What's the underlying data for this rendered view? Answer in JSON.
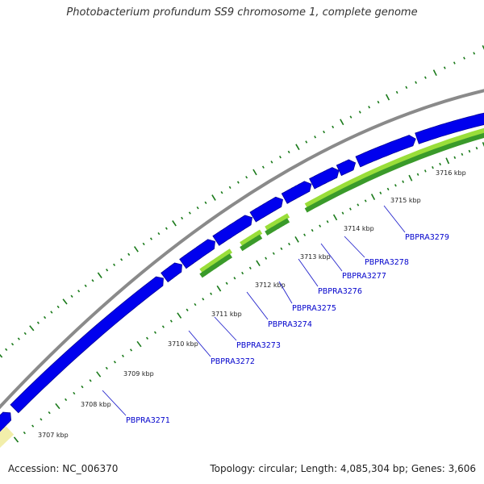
{
  "title": "Photobacterium profundum SS9 chromosome 1, complete genome",
  "footer": {
    "accession": "Accession: NC_006370",
    "summary": "Topology: circular; Length: 4,085,304 bp; Genes: 3,606"
  },
  "colors": {
    "backbone": "#8a8a8a",
    "cds_forward": "#0000ee",
    "cds_forward_edge": "#000099",
    "rna_band_light": "#9ade3a",
    "rna_band_dark": "#3a9a2a",
    "edge_feature": "#f2eeaa",
    "tick": "#1a7a1a",
    "label_text": "#0000cc",
    "leader_line": "#2222cc"
  },
  "kbp_ticks": [
    "3707 kbp",
    "3708 kbp",
    "3709 kbp",
    "3710 kbp",
    "3711 kbp",
    "3712 kbp",
    "3713 kbp",
    "3714 kbp",
    "3715 kbp",
    "3716 kbp"
  ],
  "genes": [
    "PBPRA3271",
    "PBPRA3272",
    "PBPRA3273",
    "PBPRA3274",
    "PBPRA3275",
    "PBPRA3276",
    "PBPRA3277",
    "PBPRA3278",
    "PBPRA3279"
  ]
}
